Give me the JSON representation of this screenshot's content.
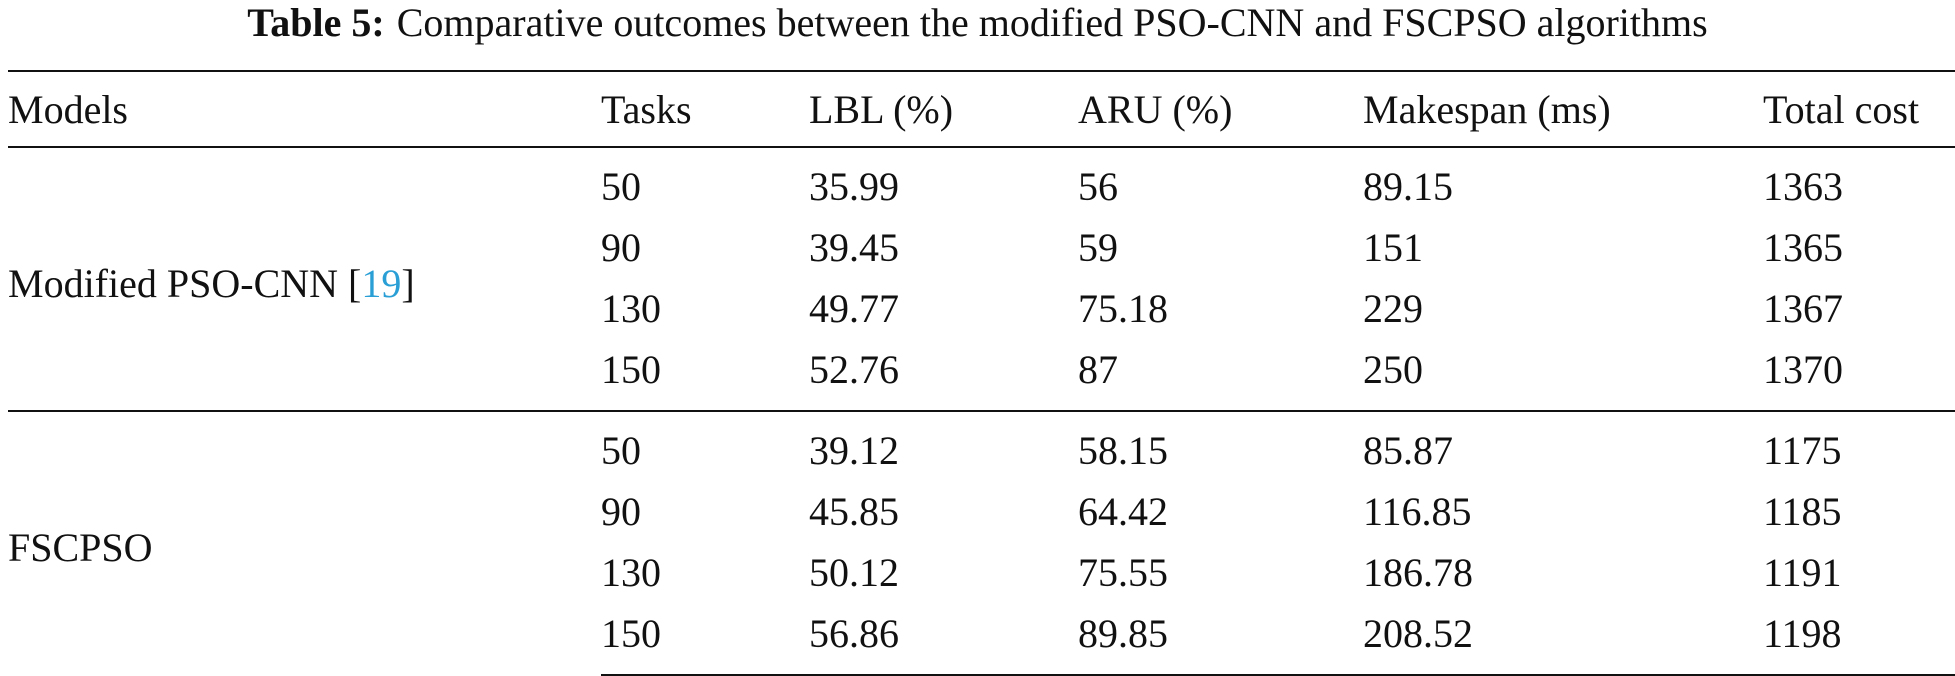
{
  "caption": {
    "label": "Table 5:",
    "text": "Comparative outcomes between the modified PSO-CNN and FSCPSO algorithms"
  },
  "table": {
    "headers": [
      "Models",
      "Tasks",
      "LBL (%)",
      "ARU (%)",
      "Makespan (ms)",
      "Total cost"
    ],
    "groups": [
      {
        "model": "Modified PSO-CNN [",
        "cite": "19",
        "model_suffix": "]",
        "rows": [
          [
            "50",
            "35.99",
            "56",
            "89.15",
            "1363"
          ],
          [
            "90",
            "39.45",
            "59",
            "151",
            "1365"
          ],
          [
            "130",
            "49.77",
            "75.18",
            "229",
            "1367"
          ],
          [
            "150",
            "52.76",
            "87",
            "250",
            "1370"
          ]
        ]
      },
      {
        "model": "FSCPSO",
        "cite": "",
        "model_suffix": "",
        "rows": [
          [
            "50",
            "39.12",
            "58.15",
            "85.87",
            "1175"
          ],
          [
            "90",
            "45.85",
            "64.42",
            "116.85",
            "1185"
          ],
          [
            "130",
            "50.12",
            "75.55",
            "186.78",
            "1191"
          ],
          [
            "150",
            "56.86",
            "89.85",
            "208.52",
            "1198"
          ]
        ]
      }
    ]
  }
}
